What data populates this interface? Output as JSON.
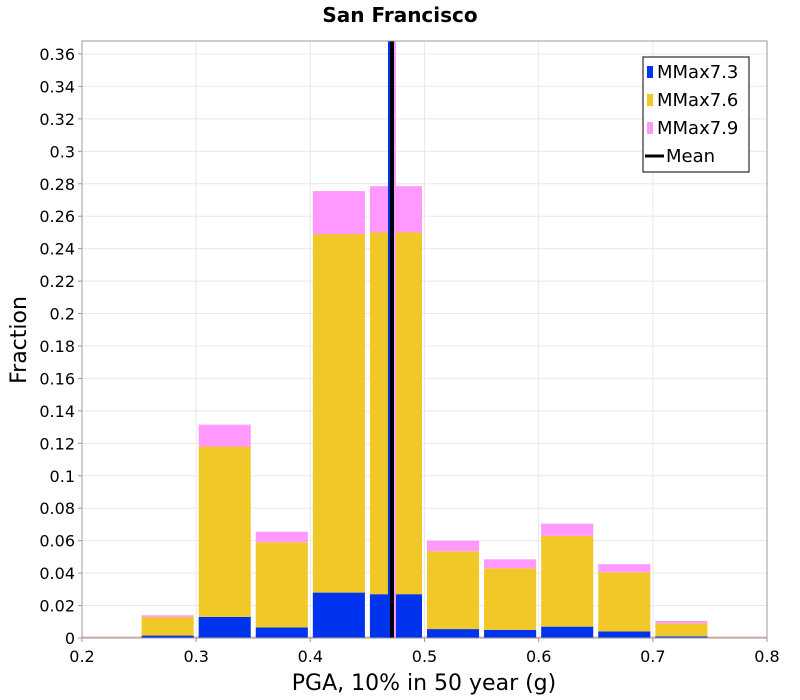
{
  "chart_data": {
    "type": "bar",
    "stacked": true,
    "title": "San Francisco",
    "xlabel": "PGA, 10% in 50 year (g)",
    "ylabel": "Fraction",
    "xlim": [
      0.2,
      0.8
    ],
    "ylim": [
      0,
      0.368
    ],
    "bin_width": 0.05,
    "grid": true,
    "legend_position": "top-right",
    "x_ticks": [
      0.2,
      0.3,
      0.4,
      0.5,
      0.6,
      0.7,
      0.8
    ],
    "x_tick_labels": [
      "0.2",
      "0.3",
      "0.4",
      "0.5",
      "0.6",
      "0.7",
      "0.8"
    ],
    "y_ticks": [
      0,
      0.02,
      0.04,
      0.06,
      0.08,
      0.1,
      0.12,
      0.14,
      0.16,
      0.18,
      0.2,
      0.22,
      0.24,
      0.26,
      0.28,
      0.3,
      0.32,
      0.34,
      0.36
    ],
    "y_tick_labels": [
      "0",
      "0.02",
      "0.04",
      "0.06",
      "0.08",
      "0.1",
      "0.12",
      "0.14",
      "0.16",
      "0.18",
      "0.2",
      "0.22",
      "0.24",
      "0.26",
      "0.28",
      "0.3",
      "0.32",
      "0.34",
      "0.36"
    ],
    "bins": [
      0.25,
      0.3,
      0.35,
      0.4,
      0.45,
      0.5,
      0.55,
      0.6,
      0.65,
      0.7
    ],
    "series": [
      {
        "name": "MMax7.3",
        "color": "#0033ee",
        "values": [
          0.0015,
          0.013,
          0.0065,
          0.028,
          0.027,
          0.0055,
          0.005,
          0.007,
          0.004,
          0.001
        ]
      },
      {
        "name": "MMax7.6",
        "color": "#f0c828",
        "values": [
          0.0115,
          0.105,
          0.0525,
          0.221,
          0.223,
          0.048,
          0.038,
          0.056,
          0.0365,
          0.008
        ]
      },
      {
        "name": "MMax7.9",
        "color": "#ff99ff",
        "values": [
          0.001,
          0.0135,
          0.0065,
          0.0265,
          0.0285,
          0.0065,
          0.0055,
          0.0075,
          0.005,
          0.0015
        ]
      }
    ],
    "mean": {
      "name": "Mean",
      "value": 0.4715,
      "color": "#000000"
    }
  }
}
